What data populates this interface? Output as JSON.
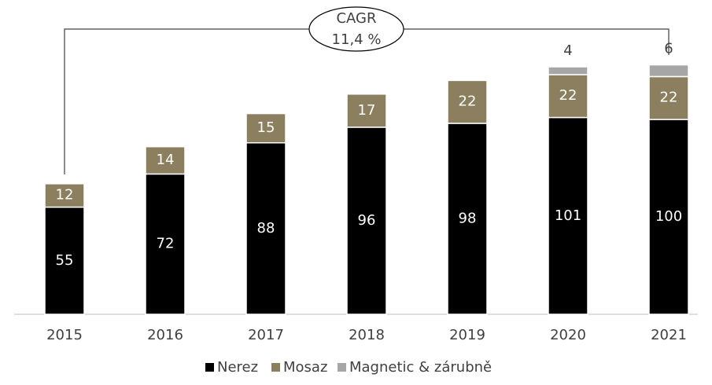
{
  "chart_data": {
    "type": "bar",
    "stacked": true,
    "categories": [
      "2015",
      "2016",
      "2017",
      "2018",
      "2019",
      "2020",
      "2021"
    ],
    "series": [
      {
        "name": "Nerez",
        "color": "#000000",
        "values": [
          55,
          72,
          88,
          96,
          98,
          101,
          100
        ]
      },
      {
        "name": "Mosaz",
        "color": "#8c7f5f",
        "values": [
          12,
          14,
          15,
          17,
          22,
          22,
          22
        ]
      },
      {
        "name": "Magnetic & zárubně",
        "color": "#a6a6a6",
        "values": [
          null,
          null,
          null,
          null,
          null,
          4,
          6
        ]
      }
    ],
    "annotation": [
      "CAGR",
      "11,4 %"
    ],
    "ylim": [
      0,
      130
    ],
    "legend": "bottom"
  }
}
